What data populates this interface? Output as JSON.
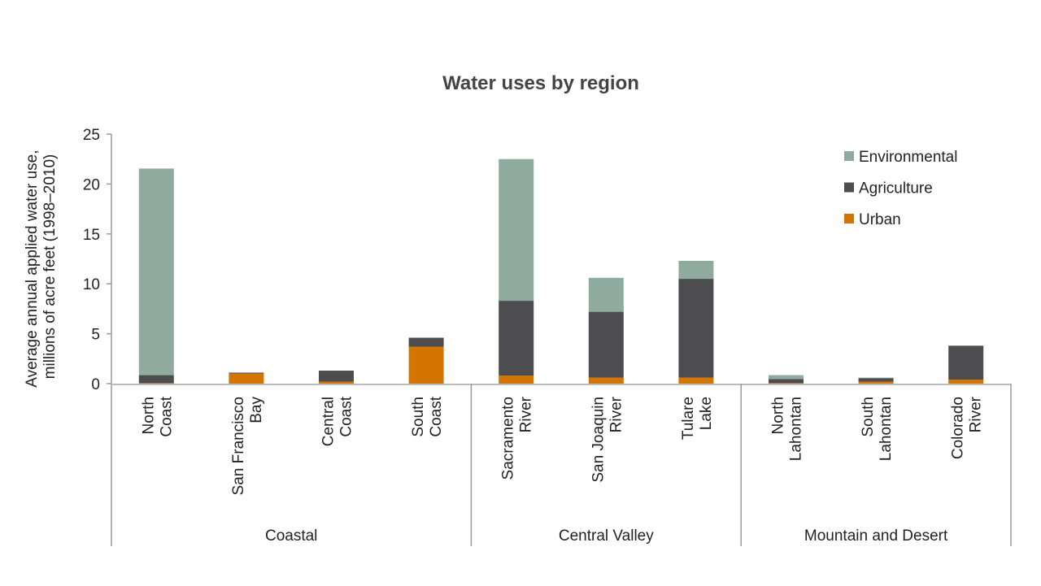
{
  "chart_data": {
    "type": "bar",
    "stacked": true,
    "title": "Water uses  by region",
    "ylabel_lines": [
      "Average annual applied water use,",
      "millions of acre feet (1998–2010)"
    ],
    "xlabel": "",
    "ylim": [
      0,
      25
    ],
    "yticks": [
      0,
      5,
      10,
      15,
      20,
      25
    ],
    "grid": false,
    "legend_position": "top-right",
    "categories": [
      [
        "North",
        "Coast"
      ],
      [
        "San Francisco",
        "Bay"
      ],
      [
        "Central",
        "Coast"
      ],
      [
        "South",
        "Coast"
      ],
      [
        "Sacramento",
        "River"
      ],
      [
        "San Joaquin",
        "River"
      ],
      [
        "Tulare",
        "Lake"
      ],
      [
        "North",
        "Lahontan"
      ],
      [
        "South",
        "Lahontan"
      ],
      [
        "Colorado",
        "River"
      ]
    ],
    "groups": [
      {
        "label": "Coastal",
        "count": 4
      },
      {
        "label": "Central Valley",
        "count": 3
      },
      {
        "label": "Mountain and Desert",
        "count": 3
      }
    ],
    "series": [
      {
        "name": "Urban",
        "color": "#d47500",
        "values": [
          0.05,
          1.0,
          0.2,
          3.7,
          0.8,
          0.6,
          0.6,
          0.05,
          0.2,
          0.4
        ]
      },
      {
        "name": "Agriculture",
        "color": "#4d4d4f",
        "values": [
          0.8,
          0.1,
          1.1,
          0.9,
          7.5,
          6.6,
          9.9,
          0.4,
          0.35,
          3.4
        ]
      },
      {
        "name": "Environmental",
        "color": "#8fab9f",
        "values": [
          20.7,
          0,
          0,
          0,
          14.2,
          3.4,
          1.8,
          0.4,
          0.05,
          0
        ]
      }
    ],
    "legend_order": [
      "Environmental",
      "Agriculture",
      "Urban"
    ]
  }
}
